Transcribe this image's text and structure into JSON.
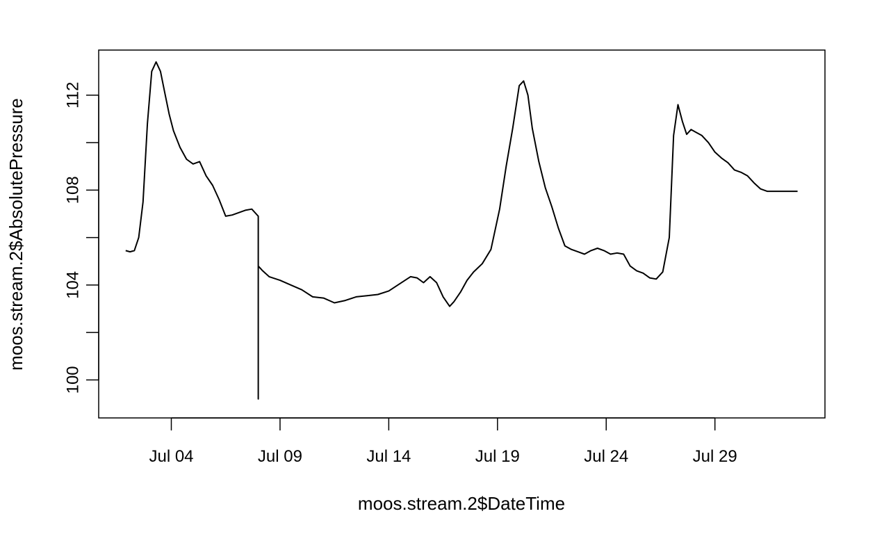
{
  "chart_data": {
    "type": "line",
    "title": "",
    "xlabel": "moos.stream.2$DateTime",
    "ylabel": "moos.stream.2$AbsolutePressure",
    "x_unit": "day of July",
    "xlim": [
      0.66,
      34.06
    ],
    "ylim": [
      98.4,
      113.9
    ],
    "x_ticks": [
      {
        "value": 4,
        "label": "Jul 04"
      },
      {
        "value": 9,
        "label": "Jul 09"
      },
      {
        "value": 14,
        "label": "Jul 14"
      },
      {
        "value": 19,
        "label": "Jul 19"
      },
      {
        "value": 24,
        "label": "Jul 24"
      },
      {
        "value": 29,
        "label": "Jul 29"
      }
    ],
    "y_ticks": [
      {
        "value": 100,
        "label": "100"
      },
      {
        "value": 102,
        "label": ""
      },
      {
        "value": 104,
        "label": "104"
      },
      {
        "value": 106,
        "label": ""
      },
      {
        "value": 108,
        "label": "108"
      },
      {
        "value": 110,
        "label": ""
      },
      {
        "value": 112,
        "label": "112"
      }
    ],
    "grid": false,
    "line_color": "#000000",
    "series": [
      {
        "x": [
          1.9,
          2.1,
          2.3,
          2.5,
          2.7,
          2.9,
          3.1,
          3.3,
          3.5,
          3.7,
          3.9,
          4.1,
          4.4,
          4.7,
          5.0,
          5.3,
          5.6,
          5.9,
          6.2,
          6.5,
          6.8,
          7.1,
          7.4,
          7.7,
          7.9,
          8.0,
          8.0,
          8.0,
          8.0,
          8.2,
          8.5,
          9.0,
          9.5,
          10.0,
          10.5,
          11.0,
          11.5,
          12.0,
          12.5,
          13.0,
          13.5,
          14.0,
          14.5,
          15.0,
          15.3,
          15.6,
          15.9,
          16.2,
          16.5,
          16.8,
          17.0,
          17.3,
          17.6,
          17.9,
          18.3,
          18.7,
          19.1,
          19.4,
          19.7,
          20.0,
          20.2,
          20.4,
          20.6,
          20.9,
          21.2,
          21.5,
          21.8,
          22.1,
          22.4,
          22.7,
          23.0,
          23.3,
          23.6,
          23.9,
          24.2,
          24.5,
          24.8,
          25.1,
          25.4,
          25.7,
          26.0,
          26.3,
          26.6,
          26.9,
          27.1,
          27.3,
          27.5,
          27.7,
          27.9,
          28.1,
          28.4,
          28.7,
          29.0,
          29.3,
          29.6,
          29.9,
          30.2,
          30.5,
          30.8,
          31.1,
          31.4,
          31.7,
          32.0,
          32.3,
          32.8
        ],
        "y": [
          105.45,
          105.4,
          105.45,
          106.0,
          107.5,
          110.8,
          113.0,
          113.4,
          113.0,
          112.1,
          111.2,
          110.5,
          109.8,
          109.3,
          109.1,
          109.2,
          108.6,
          108.2,
          107.6,
          106.9,
          106.95,
          107.05,
          107.15,
          107.2,
          107.0,
          106.9,
          99.2,
          104.8,
          104.8,
          104.6,
          104.35,
          104.2,
          104.0,
          103.8,
          103.5,
          103.45,
          103.25,
          103.35,
          103.5,
          103.55,
          103.6,
          103.75,
          104.05,
          104.35,
          104.3,
          104.1,
          104.35,
          104.1,
          103.5,
          103.1,
          103.3,
          103.7,
          104.2,
          104.55,
          104.9,
          105.5,
          107.2,
          109.0,
          110.6,
          112.4,
          112.6,
          112.0,
          110.6,
          109.2,
          108.1,
          107.3,
          106.4,
          105.65,
          105.5,
          105.4,
          105.3,
          105.45,
          105.55,
          105.45,
          105.3,
          105.35,
          105.3,
          104.8,
          104.6,
          104.5,
          104.3,
          104.25,
          104.55,
          106.0,
          110.3,
          111.6,
          110.9,
          110.35,
          110.55,
          110.45,
          110.3,
          110.0,
          109.6,
          109.35,
          109.15,
          108.85,
          108.75,
          108.6,
          108.3,
          108.05,
          107.95,
          107.95,
          107.95,
          107.95,
          107.95
        ]
      }
    ]
  }
}
